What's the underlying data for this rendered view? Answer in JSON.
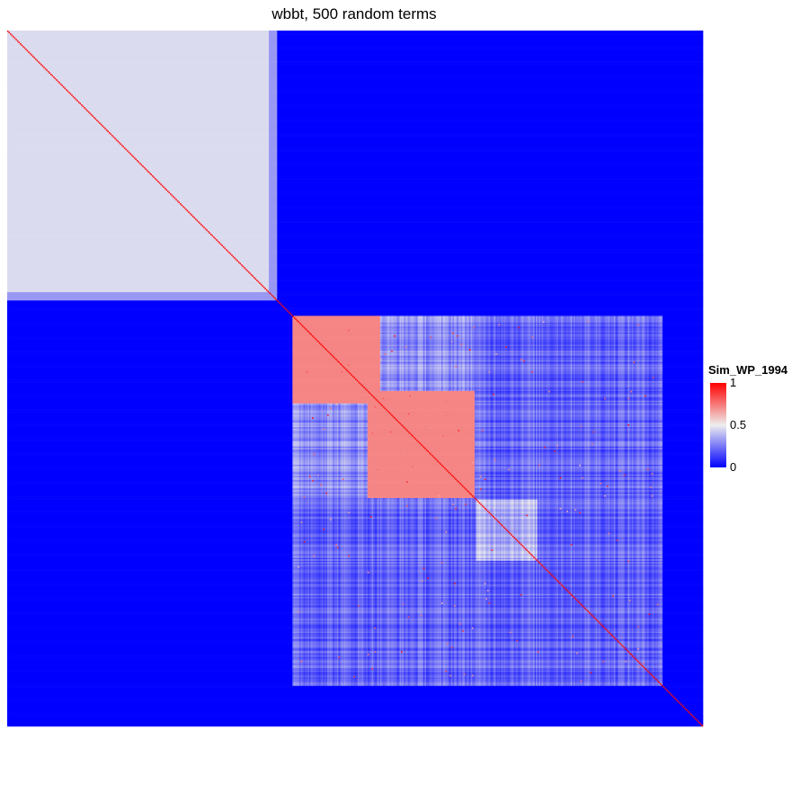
{
  "chart_data": {
    "type": "heatmap",
    "title": "wbbt, 500 random terms",
    "n_terms": 500,
    "legend": {
      "title": "Sim_WP_1994",
      "ticks": [
        {
          "label": "1",
          "value": 1
        },
        {
          "label": "0.5",
          "value": 0.5
        },
        {
          "label": "0",
          "value": 0
        }
      ],
      "colors": {
        "low": "#0000ff",
        "mid": "#eeeeee",
        "high": "#ff0000"
      },
      "placement": "right"
    },
    "clusters": [
      {
        "name": "cluster-1",
        "start": 0,
        "end": 193,
        "within": 0.46,
        "edge_fraction": 0.03
      },
      {
        "name": "cluster-2",
        "start": 205,
        "end": 267,
        "within": 0.72
      },
      {
        "name": "cluster-3",
        "start": 259,
        "end": 335,
        "within": 0.72
      }
    ],
    "background_value": 0,
    "diagonal_value": 1,
    "bands": [
      {
        "rows": [
          205,
          470
        ],
        "cols": [
          205,
          470
        ],
        "value": 0.22
      },
      {
        "rows": [
          205,
          267
        ],
        "cols": [
          259,
          335
        ],
        "value": 0.3
      },
      {
        "rows": [
          259,
          335
        ],
        "cols": [
          205,
          267
        ],
        "value": 0.3
      },
      {
        "rows": [
          337,
          380
        ],
        "cols": [
          337,
          380
        ],
        "value": 0.38
      }
    ],
    "noise": {
      "seed": 1994,
      "region": [
        205,
        470
      ],
      "amplitude": 0.14,
      "hot_spots": 90
    }
  }
}
